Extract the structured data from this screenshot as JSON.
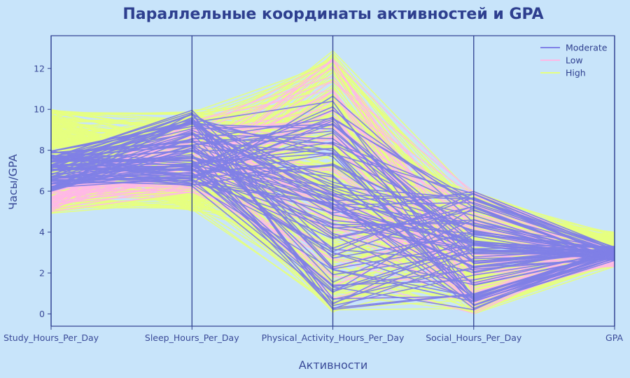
{
  "chart_data": {
    "type": "parallel_coordinates",
    "title": "Параллельные координаты активностей и GPA",
    "xlabel": "Активности",
    "ylabel": "Часы/GPA",
    "ylim": [
      -0.6,
      13.6
    ],
    "yticks": [
      0,
      2,
      4,
      6,
      8,
      10,
      12
    ],
    "dimensions": [
      "Study_Hours_Per_Day",
      "Sleep_Hours_Per_Day",
      "Physical_Activity_Hours_Per_Day",
      "Social_Hours_Per_Day",
      "GPA"
    ],
    "legend_position": "top-right",
    "series": [
      {
        "name": "Moderate",
        "color": "#7f7fe6",
        "ranges": {
          "Study_Hours_Per_Day": [
            6.0,
            8.0
          ],
          "Sleep_Hours_Per_Day": [
            6.2,
            10.0
          ],
          "Physical_Activity_Hours_Per_Day": [
            0.2,
            10.8
          ],
          "Social_Hours_Per_Day": [
            0.2,
            6.0
          ],
          "GPA": [
            2.6,
            3.3
          ]
        }
      },
      {
        "name": "Low",
        "color": "#ffb8e6",
        "ranges": {
          "Study_Hours_Per_Day": [
            5.0,
            6.5
          ],
          "Sleep_Hours_Per_Day": [
            5.9,
            9.5
          ],
          "Physical_Activity_Hours_Per_Day": [
            0.6,
            12.5
          ],
          "Social_Hours_Per_Day": [
            0.0,
            6.0
          ],
          "GPA": [
            2.3,
            3.3
          ]
        }
      },
      {
        "name": "High",
        "color": "#e6ff80",
        "ranges": {
          "Study_Hours_Per_Day": [
            4.9,
            10.0
          ],
          "Sleep_Hours_Per_Day": [
            5.0,
            10.0
          ],
          "Physical_Activity_Hours_Per_Day": [
            0.0,
            13.0
          ],
          "Social_Hours_Per_Day": [
            0.0,
            6.0
          ],
          "GPA": [
            2.3,
            4.0
          ]
        }
      }
    ],
    "grid": false
  }
}
